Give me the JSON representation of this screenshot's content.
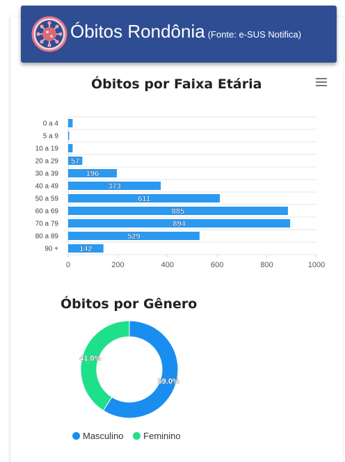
{
  "header": {
    "title": "Óbitos Rondônia",
    "source": "(Fonte: e-SUS Notifica)",
    "background": "#2f4d92"
  },
  "logo_icon": "virus-icon",
  "menu_icon": "hamburger-menu-icon",
  "chart_data": [
    {
      "type": "bar",
      "title": "Óbitos por Faixa Etária",
      "categories": [
        "0 a 4",
        "5 a 9",
        "10 a 19",
        "20 a 29",
        "30 a 39",
        "40 a 49",
        "50 a 59",
        "60 a 69",
        "70 a 79",
        "80 a 89",
        "90 +"
      ],
      "values": [
        18,
        4,
        18,
        57,
        196,
        373,
        611,
        885,
        894,
        529,
        142
      ],
      "data_labels": [
        "",
        "",
        "",
        "57",
        "196",
        "373",
        "611",
        "885",
        "894",
        "529",
        "142"
      ],
      "xlim": [
        0,
        1000
      ],
      "xticks": [
        0,
        200,
        400,
        600,
        800,
        1000
      ],
      "grid": true,
      "color": "#2b99f0"
    },
    {
      "type": "pie",
      "title": "Óbitos por Gênero",
      "donut": true,
      "slices": [
        {
          "name": "Masculino",
          "value": 59.0,
          "label": "59.0%",
          "color": "#1a8ef0"
        },
        {
          "name": "Feminino",
          "value": 41.0,
          "label": "41.0%",
          "color": "#1fe08a"
        }
      ],
      "legend": "bottom"
    }
  ]
}
